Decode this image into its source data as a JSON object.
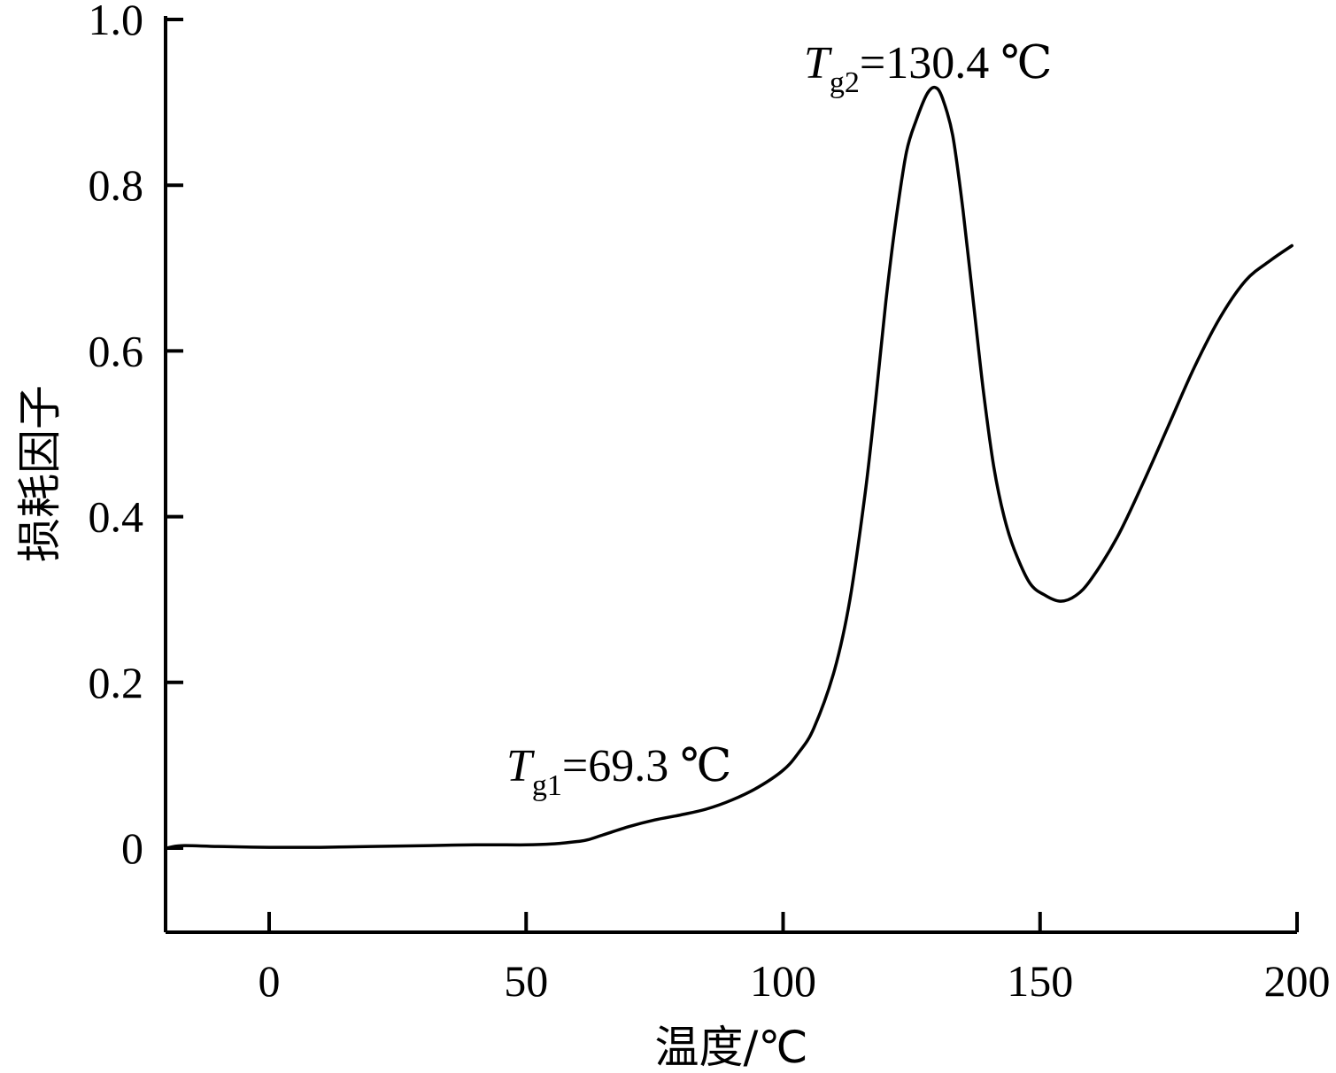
{
  "chart_data": {
    "type": "line",
    "title": "",
    "xlabel": "温度/℃",
    "ylabel": "损耗因子",
    "xlim": [
      -20,
      201
    ],
    "ylim": [
      -0.1,
      1.0
    ],
    "xticks": [
      0,
      50,
      100,
      150,
      200
    ],
    "yticks": [
      0,
      0.2,
      0.4,
      0.6,
      0.8,
      1.0
    ],
    "xtick_labels": [
      "0",
      "50",
      "100",
      "150",
      "200"
    ],
    "ytick_labels": [
      "0",
      "0.2",
      "0.4",
      "0.6",
      "0.8",
      "1.0"
    ],
    "grid": false,
    "series": [
      {
        "color": "#000000",
        "points": [
          [
            -20,
            0.0
          ],
          [
            -17,
            0.003
          ],
          [
            -10,
            0.002
          ],
          [
            0,
            0.001
          ],
          [
            10,
            0.001
          ],
          [
            20,
            0.002
          ],
          [
            30,
            0.003
          ],
          [
            40,
            0.004
          ],
          [
            50,
            0.004
          ],
          [
            55,
            0.005
          ],
          [
            60,
            0.008
          ],
          [
            62,
            0.01
          ],
          [
            65,
            0.016
          ],
          [
            70,
            0.026
          ],
          [
            75,
            0.034
          ],
          [
            80,
            0.04
          ],
          [
            85,
            0.047
          ],
          [
            90,
            0.058
          ],
          [
            95,
            0.073
          ],
          [
            100,
            0.094
          ],
          [
            103,
            0.115
          ],
          [
            106,
            0.145
          ],
          [
            110,
            0.215
          ],
          [
            113,
            0.3
          ],
          [
            116,
            0.43
          ],
          [
            118,
            0.54
          ],
          [
            120,
            0.66
          ],
          [
            122,
            0.76
          ],
          [
            124,
            0.84
          ],
          [
            126,
            0.88
          ],
          [
            128,
            0.91
          ],
          [
            129.6,
            0.918
          ],
          [
            131,
            0.905
          ],
          [
            133,
            0.86
          ],
          [
            135,
            0.77
          ],
          [
            137,
            0.66
          ],
          [
            139,
            0.55
          ],
          [
            141,
            0.46
          ],
          [
            143,
            0.4
          ],
          [
            145,
            0.36
          ],
          [
            148,
            0.32
          ],
          [
            151,
            0.305
          ],
          [
            154,
            0.298
          ],
          [
            157,
            0.305
          ],
          [
            160,
            0.325
          ],
          [
            165,
            0.375
          ],
          [
            170,
            0.44
          ],
          [
            175,
            0.51
          ],
          [
            180,
            0.58
          ],
          [
            185,
            0.64
          ],
          [
            190,
            0.685
          ],
          [
            195,
            0.71
          ],
          [
            199,
            0.727
          ]
        ]
      }
    ],
    "annotations": [
      {
        "label": "T",
        "subscript": "g1",
        "value_text": "=69.3 ℃",
        "x": 69.3,
        "y": 0.04
      },
      {
        "label": "T",
        "subscript": "g2",
        "value_text": "=130.4 ℃",
        "x": 130.4,
        "y": 0.94
      }
    ]
  }
}
